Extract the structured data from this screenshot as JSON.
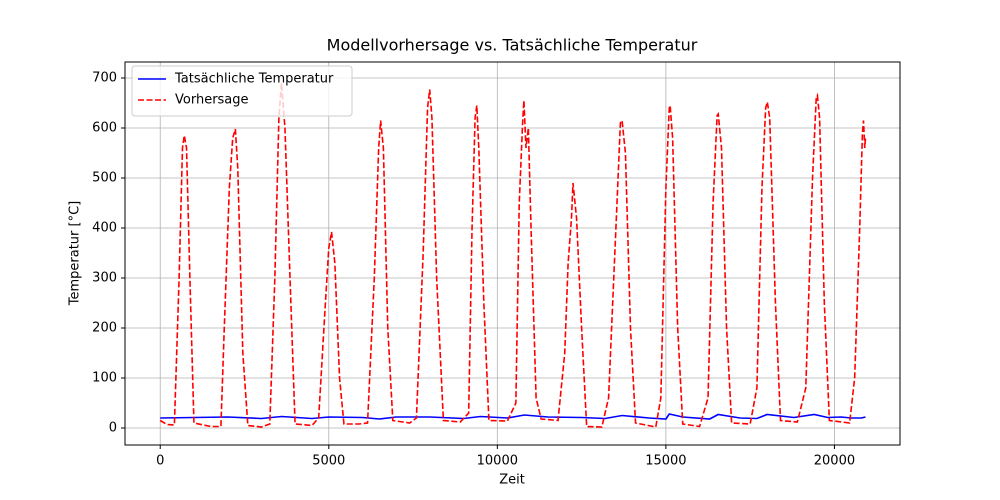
{
  "chart_data": {
    "type": "line",
    "title": "Modellvorhersage vs. Tatsächliche Temperatur",
    "x_label": "Zeit",
    "y_label": "Temperatur [°C]",
    "xlim": [
      -1045,
      21945
    ],
    "ylim": [
      -34,
      732
    ],
    "xticks": [
      0,
      5000,
      10000,
      15000,
      20000
    ],
    "yticks": [
      0,
      100,
      200,
      300,
      400,
      500,
      600,
      700
    ],
    "grid": true,
    "legend": "upper-left",
    "series": [
      {
        "name": "Tatsächliche Temperatur",
        "color": "#0000ff",
        "dash": "solid",
        "x": [
          0,
          1000,
          2000,
          3000,
          3600,
          4500,
          5000,
          6000,
          6500,
          7000,
          8000,
          9000,
          9500,
          10300,
          10800,
          11500,
          12500,
          13200,
          13700,
          14500,
          15000,
          15100,
          15500,
          16300,
          16550,
          17200,
          17700,
          18000,
          18800,
          19400,
          19800,
          20200,
          20500,
          20800,
          20920
        ],
        "values": [
          20,
          21,
          22,
          19,
          23,
          19,
          22,
          21,
          18,
          22,
          22,
          19,
          23,
          20,
          26,
          22,
          21,
          19,
          25,
          20,
          18,
          28,
          22,
          18,
          27,
          20,
          19,
          27,
          21,
          27,
          21,
          22,
          20,
          20,
          22
        ]
      },
      {
        "name": "Vorhersage",
        "color": "#ff0000",
        "dash": "dashed",
        "x": [
          0,
          200,
          420,
          560,
          660,
          713,
          780,
          880,
          1000,
          1500,
          1800,
          1900,
          2050,
          2150,
          2229,
          2300,
          2450,
          2600,
          3000,
          3250,
          3400,
          3520,
          3596,
          3700,
          3850,
          4000,
          4500,
          4700,
          4900,
          5000,
          5082,
          5180,
          5320,
          5450,
          5900,
          6150,
          6350,
          6480,
          6538,
          6620,
          6750,
          6900,
          7400,
          7600,
          7800,
          7930,
          7994,
          8060,
          8200,
          8400,
          8900,
          9150,
          9250,
          9340,
          9391,
          9450,
          9600,
          9750,
          10300,
          10550,
          10650,
          10750,
          10788,
          10850,
          10920,
          11000,
          11150,
          11300,
          11800,
          12000,
          12100,
          12200,
          12244,
          12350,
          12500,
          12650,
          13100,
          13300,
          13550,
          13650,
          13700,
          13800,
          13950,
          14100,
          14700,
          14850,
          15000,
          15100,
          15126,
          15200,
          15350,
          15500,
          16000,
          16250,
          16400,
          16520,
          16553,
          16650,
          16800,
          16950,
          17500,
          17700,
          17850,
          17960,
          18009,
          18080,
          18250,
          18400,
          18900,
          19150,
          19350,
          19460,
          19495,
          19560,
          19700,
          19850,
          20450,
          20600,
          20750,
          20830,
          20862,
          20900,
          20920
        ],
        "values": [
          15,
          7,
          6,
          300,
          560,
          585,
          560,
          300,
          10,
          3,
          3,
          200,
          480,
          580,
          598,
          520,
          150,
          5,
          2,
          8,
          300,
          620,
          690,
          600,
          300,
          8,
          5,
          20,
          250,
          360,
          392,
          330,
          100,
          8,
          8,
          10,
          300,
          560,
          615,
          560,
          200,
          15,
          10,
          20,
          350,
          640,
          677,
          620,
          300,
          15,
          12,
          30,
          400,
          620,
          645,
          560,
          250,
          15,
          14,
          50,
          450,
          610,
          655,
          560,
          600,
          400,
          60,
          18,
          15,
          150,
          330,
          420,
          490,
          420,
          200,
          3,
          2,
          60,
          450,
          610,
          615,
          550,
          200,
          10,
          2,
          60,
          480,
          640,
          645,
          580,
          200,
          8,
          3,
          60,
          450,
          625,
          628,
          560,
          200,
          10,
          8,
          80,
          480,
          640,
          652,
          620,
          250,
          15,
          12,
          80,
          500,
          660,
          665,
          620,
          250,
          15,
          10,
          100,
          400,
          590,
          615,
          560,
          580
        ]
      }
    ]
  }
}
